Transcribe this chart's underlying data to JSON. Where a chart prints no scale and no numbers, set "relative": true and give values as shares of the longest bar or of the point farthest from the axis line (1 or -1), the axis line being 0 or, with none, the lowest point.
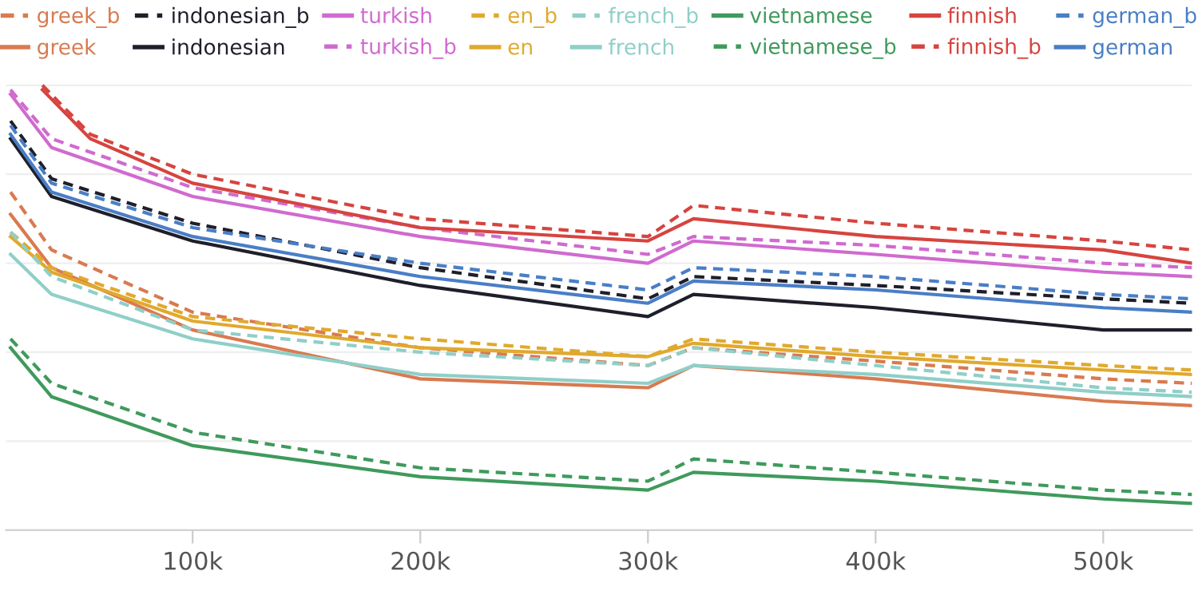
{
  "chart_data": {
    "type": "line",
    "relative": true,
    "grid": "y",
    "legend": "top",
    "tick_labels": "x",
    "x": [
      20000,
      38000,
      100000,
      200000,
      300000,
      320000,
      400000,
      500000,
      539000
    ],
    "xlim": [
      18000,
      539000
    ],
    "xticks": [
      {
        "value": 100000,
        "label": "100k"
      },
      {
        "value": 200000,
        "label": "200k"
      },
      {
        "value": 300000,
        "label": "300k"
      },
      {
        "value": 400000,
        "label": "400k"
      },
      {
        "value": 500000,
        "label": "500k"
      }
    ],
    "series": [
      {
        "name": "greek_b",
        "color": "#d97a50",
        "line_style": "dashed",
        "values": [
          0.76,
          0.63,
          0.49,
          0.41,
          0.37,
          0.41,
          0.38,
          0.34,
          0.33
        ]
      },
      {
        "name": "greek",
        "color": "#d97a50",
        "line_style": "solid",
        "values": [
          0.71,
          0.59,
          0.45,
          0.34,
          0.32,
          0.37,
          0.34,
          0.29,
          0.28
        ]
      },
      {
        "name": "indonesian_b",
        "color": "#1f1f2b",
        "line_style": "dashed",
        "values": [
          0.92,
          0.79,
          0.69,
          0.59,
          0.52,
          0.57,
          0.55,
          0.52,
          0.51
        ]
      },
      {
        "name": "indonesian",
        "color": "#1f1f2b",
        "line_style": "solid",
        "values": [
          0.88,
          0.75,
          0.65,
          0.55,
          0.48,
          0.53,
          0.5,
          0.45,
          0.45
        ]
      },
      {
        "name": "turkish",
        "color": "#d06ad0",
        "line_style": "solid",
        "values": [
          0.98,
          0.86,
          0.75,
          0.66,
          0.6,
          0.65,
          0.62,
          0.58,
          0.57
        ]
      },
      {
        "name": "turkish_b",
        "color": "#d06ad0",
        "line_style": "dashed",
        "values": [
          0.99,
          0.88,
          0.77,
          0.68,
          0.62,
          0.66,
          0.64,
          0.6,
          0.59
        ]
      },
      {
        "name": "en_b",
        "color": "#e0a92e",
        "line_style": "dashed",
        "values": [
          0.67,
          0.59,
          0.48,
          0.43,
          0.39,
          0.43,
          0.4,
          0.37,
          0.36
        ]
      },
      {
        "name": "en",
        "color": "#e0a92e",
        "line_style": "solid",
        "values": [
          0.66,
          0.58,
          0.47,
          0.41,
          0.39,
          0.42,
          0.39,
          0.36,
          0.35
        ]
      },
      {
        "name": "french_b",
        "color": "#8fcfc8",
        "line_style": "dashed",
        "values": [
          0.67,
          0.57,
          0.45,
          0.4,
          0.37,
          0.41,
          0.37,
          0.32,
          0.31
        ]
      },
      {
        "name": "french",
        "color": "#8fcfc8",
        "line_style": "solid",
        "values": [
          0.62,
          0.53,
          0.43,
          0.35,
          0.33,
          0.37,
          0.35,
          0.31,
          0.3
        ]
      },
      {
        "name": "vietnamese",
        "color": "#3f9a5c",
        "line_style": "solid",
        "values": [
          0.41,
          0.3,
          0.19,
          0.12,
          0.09,
          0.13,
          0.11,
          0.07,
          0.06
        ]
      },
      {
        "name": "vietnamese_b",
        "color": "#3f9a5c",
        "line_style": "dashed",
        "values": [
          0.43,
          0.33,
          0.22,
          0.14,
          0.11,
          0.16,
          0.13,
          0.09,
          0.08
        ]
      },
      {
        "name": "finnish",
        "color": "#d6443f",
        "line_style": "solid",
        "x": [
          34000,
          55000,
          100000,
          200000,
          300000,
          320000,
          400000,
          500000,
          539000
        ],
        "values": [
          0.99,
          0.88,
          0.78,
          0.68,
          0.65,
          0.7,
          0.66,
          0.63,
          0.6
        ]
      },
      {
        "name": "finnish_b",
        "color": "#d6443f",
        "line_style": "dashed",
        "x": [
          34000,
          55000,
          100000,
          200000,
          300000,
          320000,
          400000,
          500000,
          539000
        ],
        "values": [
          1.0,
          0.89,
          0.8,
          0.7,
          0.66,
          0.73,
          0.69,
          0.65,
          0.63
        ]
      },
      {
        "name": "german_b",
        "color": "#4a7ec6",
        "line_style": "dashed",
        "values": [
          0.91,
          0.78,
          0.68,
          0.6,
          0.54,
          0.59,
          0.57,
          0.53,
          0.52
        ]
      },
      {
        "name": "german",
        "color": "#4a7ec6",
        "line_style": "solid",
        "values": [
          0.89,
          0.76,
          0.66,
          0.57,
          0.51,
          0.56,
          0.54,
          0.5,
          0.49
        ]
      }
    ]
  }
}
